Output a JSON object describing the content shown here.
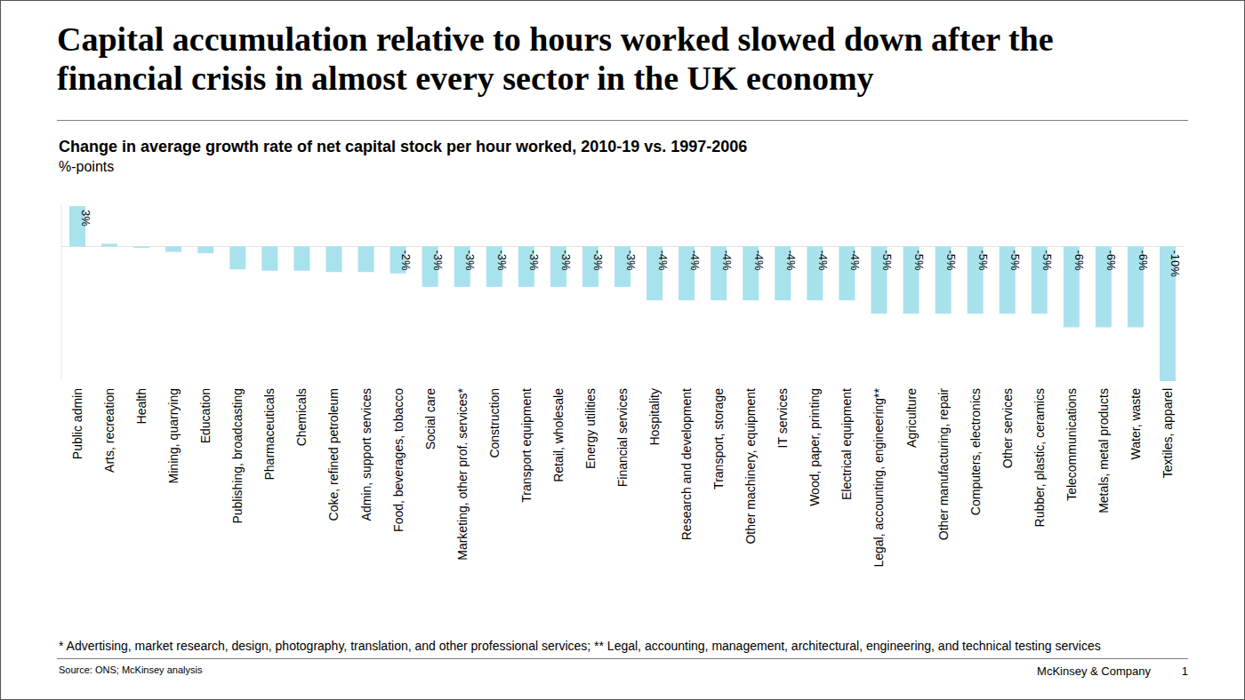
{
  "chart_data": {
    "type": "bar",
    "title": "Capital accumulation relative to hours worked slowed down after the financial crisis in almost every sector in the UK economy",
    "subtitle": "Change in average growth rate of net capital stock per hour worked, 2010-19 vs. 1997-2006",
    "y_label": "%-points",
    "categories": [
      "Public admin",
      "Arts, recreation",
      "Health",
      "Mining, quarrying",
      "Education",
      "Publishing, broadcasting",
      "Pharmaceuticals",
      "Chemicals",
      "Coke, refined petroleum",
      "Admin, support services",
      "Food, beverages, tobacco",
      "Social care",
      "Marketing, other prof. services*",
      "Construction",
      "Transport equipment",
      "Retail, wholesale",
      "Energy utilities",
      "Financial services",
      "Hospitality",
      "Research and development",
      "Transport, storage",
      "Other machinery, equipment",
      "IT services",
      "Wood, paper, printing",
      "Electrical equipment",
      "Legal, accounting, engineering**",
      "Agriculture",
      "Other manufacturing, repair",
      "Computers, electronics",
      "Other services",
      "Rubber, plastic, ceramics",
      "Telecommunications",
      "Metals, metal products",
      "Water, waste",
      "Textiles, apparel"
    ],
    "values": [
      3,
      0.2,
      -0.1,
      -0.4,
      -0.5,
      -1.7,
      -1.8,
      -1.8,
      -1.9,
      -1.9,
      -2,
      -3,
      -3,
      -3,
      -3,
      -3,
      -3,
      -3,
      -4,
      -4,
      -4,
      -4,
      -4,
      -4,
      -4,
      -5,
      -5,
      -5,
      -5,
      -5,
      -5,
      -6,
      -6,
      -6,
      -10
    ],
    "value_labels": [
      "3%",
      null,
      null,
      null,
      null,
      null,
      null,
      null,
      null,
      null,
      "-2%",
      "-3%",
      "-3%",
      "-3%",
      "-3%",
      "-3%",
      "-3%",
      "-3%",
      "-4%",
      "-4%",
      "-4%",
      "-4%",
      "-4%",
      "-4%",
      "-4%",
      "-5%",
      "-5%",
      "-5%",
      "-5%",
      "-5%",
      "-5%",
      "-6%",
      "-6%",
      "-6%",
      "-10%"
    ],
    "color": "#a8e3ed",
    "ylim": [
      -10,
      3.2
    ],
    "data_labels": true,
    "tick_labels": "x",
    "footnote": "* Advertising, market research, design, photography, translation, and other professional services; ** Legal, accounting, management, architectural, engineering, and technical testing services",
    "source": "Source: ONS; McKinsey analysis",
    "logo_text": "McKinsey & Company",
    "page_number": "1"
  }
}
